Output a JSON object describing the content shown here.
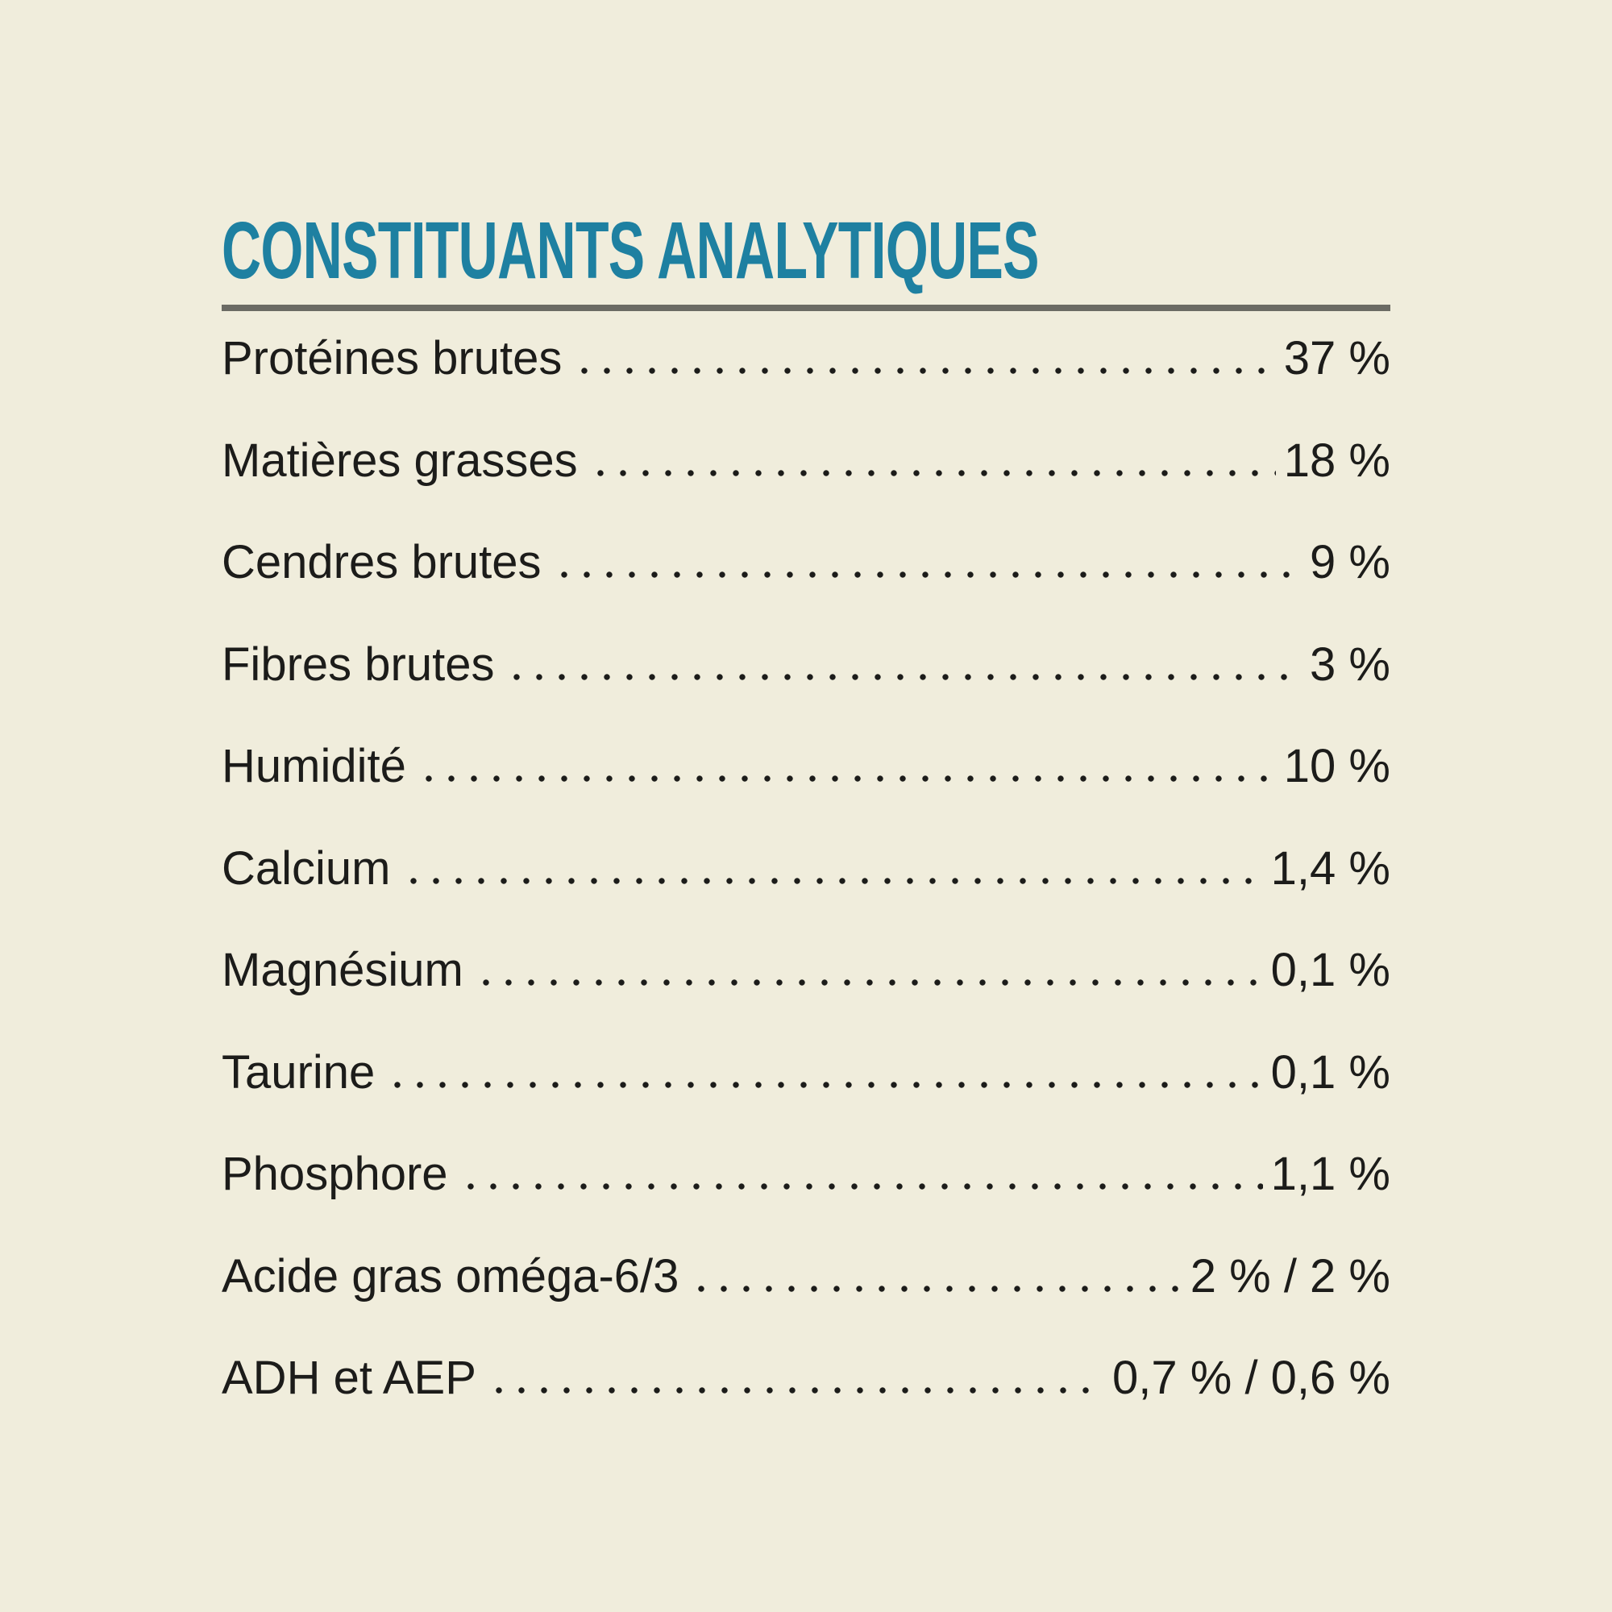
{
  "section": {
    "heading": "CONSTITUANTS ANALYTIQUES",
    "rows": [
      {
        "label": "Protéines brutes",
        "value": "37 %"
      },
      {
        "label": "Matières grasses",
        "value": "18 %"
      },
      {
        "label": "Cendres brutes",
        "value": "9 %"
      },
      {
        "label": "Fibres brutes",
        "value": "3 %"
      },
      {
        "label": "Humidité",
        "value": "10 %"
      },
      {
        "label": "Calcium",
        "value": "1,4 %"
      },
      {
        "label": "Magnésium",
        "value": "0,1 %"
      },
      {
        "label": "Taurine",
        "value": "0,1 %"
      },
      {
        "label": "Phosphore",
        "value": "1,1 %"
      },
      {
        "label": "Acide gras oméga-6/3",
        "value": "2 % / 2 %"
      },
      {
        "label": "ADH et AEP",
        "value": "0,7 % / 0,6 %"
      }
    ],
    "colors": {
      "background": "#f0eddc",
      "heading": "#1e80a1",
      "divider": "#6b6b64",
      "text": "#1c1c1a"
    }
  }
}
